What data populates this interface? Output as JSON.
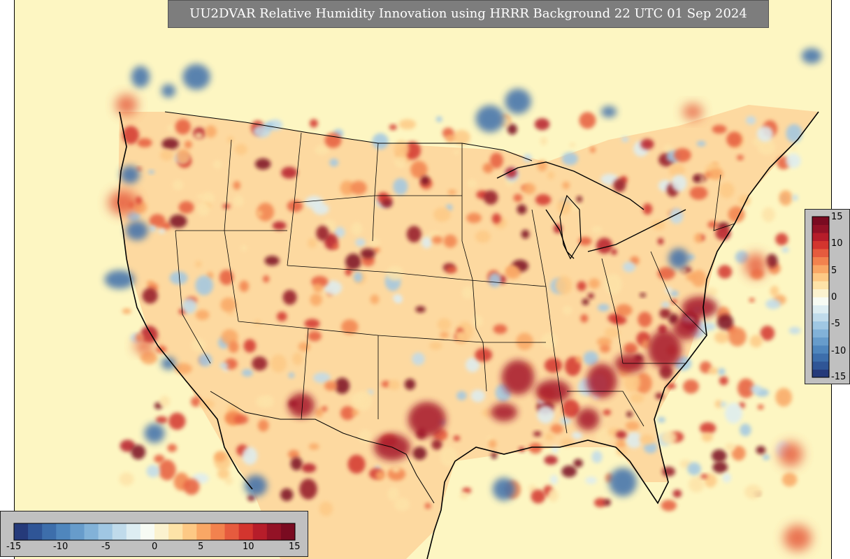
{
  "title": "UU2DVAR Relative Humidity Innovation using HRRR Background 22 UTC 01 Sep 2024",
  "colorbar": {
    "min": -15,
    "max": 15,
    "tick_labels": [
      "-15",
      "-10",
      "-5",
      "0",
      "5",
      "10",
      "15"
    ],
    "colors": [
      "#253a7a",
      "#2f5596",
      "#3d6eab",
      "#4f86bd",
      "#679ccb",
      "#82b2d8",
      "#a0c7e3",
      "#c0dbeb",
      "#ddedf2",
      "#f7fbf4",
      "#fbf2cf",
      "#fde3a8",
      "#fdc985",
      "#f9a765",
      "#f2824e",
      "#e65b3e",
      "#d3352e",
      "#b61d2a",
      "#931226",
      "#7a0b21"
    ]
  },
  "map": {
    "region": "Continental United States",
    "projection": "Lambert conformal (HRRR domain)",
    "background_color": "#fdf6c2",
    "boundary_color": "#000000"
  }
}
